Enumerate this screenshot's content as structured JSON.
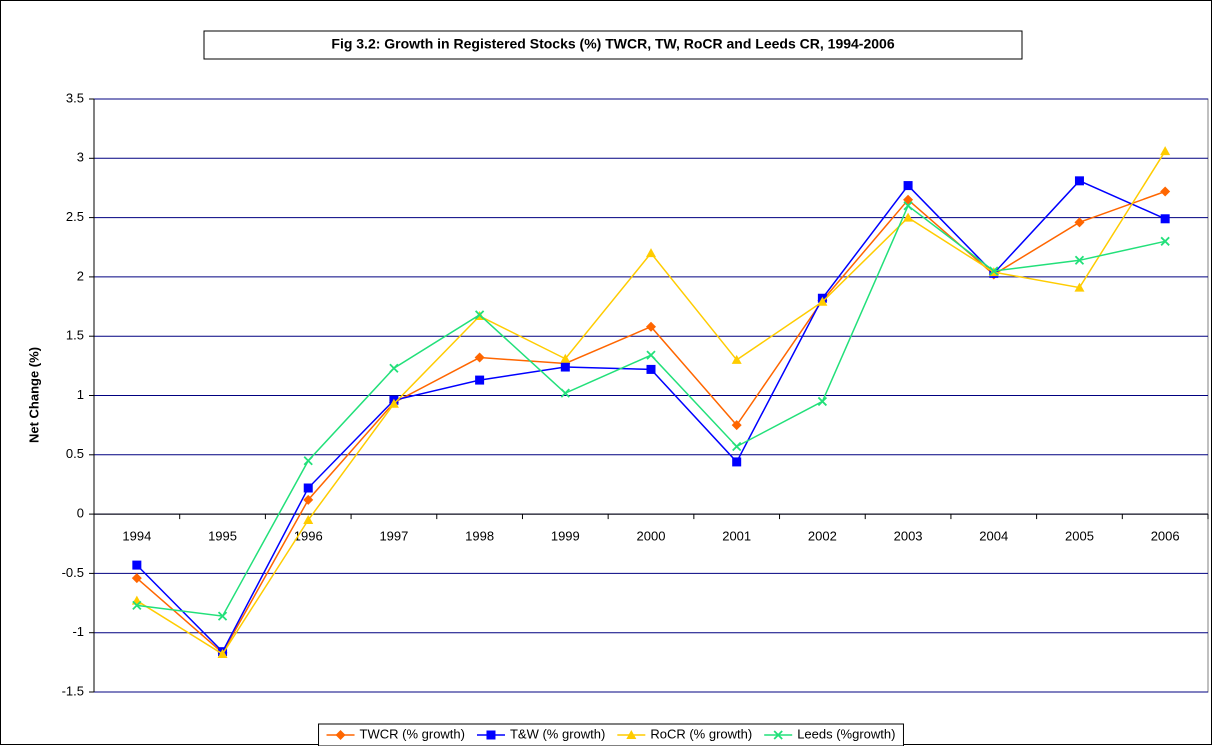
{
  "chart_data": {
    "type": "line",
    "title": "Fig 3.2: Growth in Registered Stocks (%) TWCR, TW, RoCR and Leeds CR, 1994-2006",
    "y_label": "Net Change (%)",
    "categories": [
      "1994",
      "1995",
      "1996",
      "1997",
      "1998",
      "1999",
      "2000",
      "2001",
      "2002",
      "2003",
      "2004",
      "2005",
      "2006"
    ],
    "series": [
      {
        "name": "TWCR (% growth)",
        "color": "#ff6600",
        "marker": "diamond",
        "values": [
          -0.54,
          -1.17,
          0.12,
          0.94,
          1.32,
          1.27,
          1.58,
          0.75,
          1.8,
          2.65,
          2.02,
          2.46,
          2.72
        ]
      },
      {
        "name": "T&W (% growth)",
        "color": "#0000ff",
        "marker": "square",
        "values": [
          -0.43,
          -1.16,
          0.22,
          0.96,
          1.13,
          1.24,
          1.22,
          0.44,
          1.82,
          2.77,
          2.03,
          2.81,
          2.49
        ]
      },
      {
        "name": "RoCR (% growth)",
        "color": "#ffcc00",
        "marker": "triangle",
        "values": [
          -0.73,
          -1.18,
          -0.05,
          0.93,
          1.67,
          1.31,
          2.2,
          1.3,
          1.79,
          2.5,
          2.04,
          1.91,
          3.06
        ]
      },
      {
        "name": "Leeds (%growth)",
        "color": "#22e07a",
        "marker": "x",
        "values": [
          -0.77,
          -0.86,
          0.45,
          1.23,
          1.68,
          1.02,
          1.34,
          0.57,
          0.95,
          2.6,
          2.05,
          2.14,
          2.3
        ]
      }
    ],
    "ylim": [
      -1.5,
      3.5
    ],
    "yticks": [
      -1.5,
      -1,
      -0.5,
      0,
      0.5,
      1,
      1.5,
      2,
      2.5,
      3,
      3.5
    ],
    "grid": true,
    "grid_color": "#000080",
    "legend": "bottom"
  }
}
